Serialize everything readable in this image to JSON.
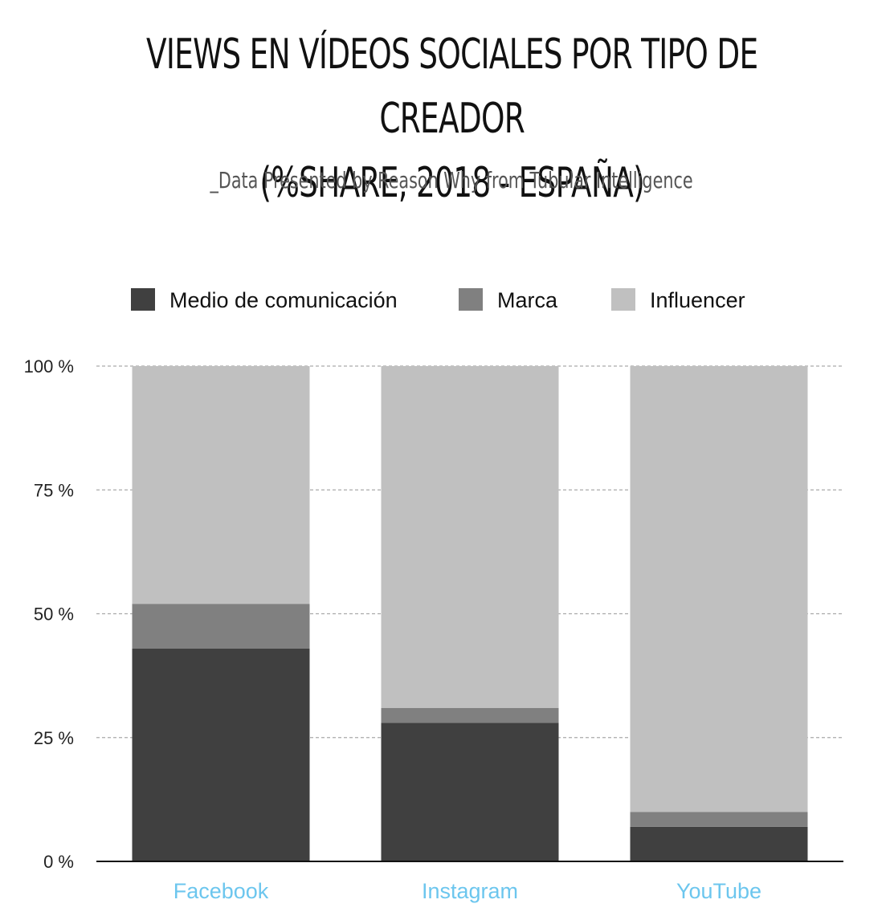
{
  "header": {
    "title_line1": "VIEWS EN VÍDEOS SOCIALES POR TIPO DE CREADOR",
    "title_line2": "(%SHARE, 2018 - ESPAÑA)",
    "subtitle": "_Data Presented by Reason Why from Tubular Intelligence"
  },
  "chart_data": {
    "type": "bar",
    "stacked": true,
    "categories": [
      "Facebook",
      "Instagram",
      "YouTube"
    ],
    "series": [
      {
        "name": "Medio de comunicación",
        "values": [
          43,
          28,
          7
        ],
        "color": "#404040"
      },
      {
        "name": "Marca",
        "values": [
          9,
          3,
          3
        ],
        "color": "#808080"
      },
      {
        "name": "Influencer",
        "values": [
          48,
          69,
          90
        ],
        "color": "#c0c0c0"
      }
    ],
    "ylim": [
      0,
      100
    ],
    "yticks": [
      0,
      25,
      50,
      75,
      100
    ],
    "ytick_labels": [
      "0 %",
      "25 %",
      "50 %",
      "75 %",
      "100 %"
    ],
    "grid": true,
    "legend_position": "top",
    "xlabel": "",
    "ylabel": "",
    "category_label_color": "#6cc6ee",
    "axis_color": "#111111",
    "grid_color": "#aaaaaa"
  }
}
